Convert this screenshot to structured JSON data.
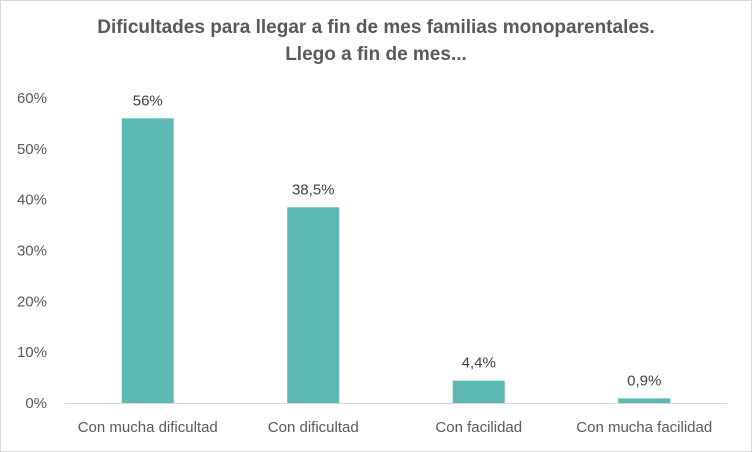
{
  "chart_data": {
    "type": "bar",
    "title_line1": "Dificultades para llegar a fin de mes familias monoparentales.",
    "title_line2": "Llego a fin de mes...",
    "categories": [
      "Con mucha dificultad",
      "Con dificultad",
      "Con facilidad",
      "Con mucha facilidad"
    ],
    "values": [
      56,
      38.5,
      4.4,
      0.9
    ],
    "data_labels": [
      "56%",
      "38,5%",
      "4,4%",
      "0,9%"
    ],
    "ylim": [
      0,
      60
    ],
    "yticks": [
      0,
      10,
      20,
      30,
      40,
      50,
      60
    ],
    "ytick_labels": [
      "0%",
      "10%",
      "20%",
      "30%",
      "40%",
      "50%",
      "60%"
    ],
    "xlabel": "",
    "ylabel": "",
    "grid": false,
    "bar_color": "#5bb8b2"
  }
}
